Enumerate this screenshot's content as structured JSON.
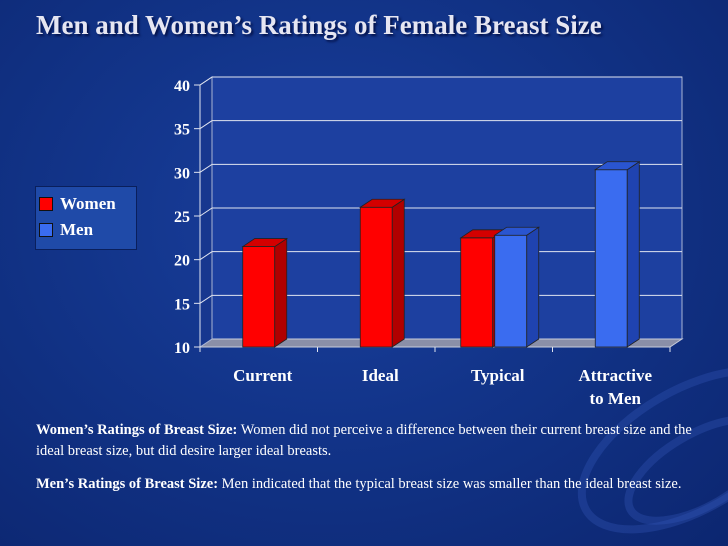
{
  "title": "Men and Women’s Ratings of Female Breast Size",
  "colors": {
    "women": "#ff0000",
    "men": "#3a6cf0",
    "background": "#123489"
  },
  "chart_data": {
    "type": "bar",
    "title": "Men and Women’s Ratings of Female Breast Size",
    "categories": [
      "Current",
      "Ideal",
      "Typical",
      "Attractive to Men"
    ],
    "category_lines": [
      [
        "Current"
      ],
      [
        "Ideal"
      ],
      [
        "Typical"
      ],
      [
        "Attractive",
        "to Men"
      ]
    ],
    "series": [
      {
        "name": "Women",
        "values": [
          21.5,
          26,
          22.5,
          null
        ]
      },
      {
        "name": "Men",
        "values": [
          null,
          null,
          22.8,
          30.3
        ]
      }
    ],
    "yticks": [
      10,
      15,
      20,
      25,
      30,
      35,
      40
    ],
    "ylim": [
      10,
      40
    ],
    "xlabel": "",
    "ylabel": "",
    "grid": true,
    "legend_position": "left"
  },
  "captions": [
    {
      "lead": "Women’s Ratings of Breast Size:",
      "text": " Women did not perceive a difference between their current breast size and the ideal breast size, but did desire larger ideal breasts."
    },
    {
      "lead": "Men’s Ratings of Breast Size:",
      "text": " Men indicated that the typical breast size was smaller than the ideal breast size."
    }
  ]
}
